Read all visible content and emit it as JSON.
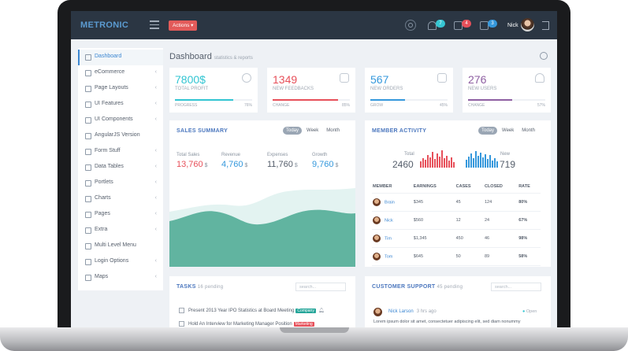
{
  "topbar": {
    "logo": "METRONIC",
    "actions_label": "Actions",
    "notif_count": "7",
    "inbox_count": "4",
    "calendar_count": "3",
    "user_name": "Nick"
  },
  "sidebar": {
    "items": [
      {
        "label": "Dashboard"
      },
      {
        "label": "eCommerce"
      },
      {
        "label": "Page Layouts"
      },
      {
        "label": "UI Features"
      },
      {
        "label": "UI Components"
      },
      {
        "label": "AngularJS Version"
      },
      {
        "label": "Form Stuff"
      },
      {
        "label": "Data Tables"
      },
      {
        "label": "Portlets"
      },
      {
        "label": "Charts"
      },
      {
        "label": "Pages"
      },
      {
        "label": "Extra"
      },
      {
        "label": "Multi Level Menu"
      },
      {
        "label": "Login Options"
      },
      {
        "label": "Maps"
      }
    ]
  },
  "page": {
    "title": "Dashboard",
    "subtitle": "statistics & reports"
  },
  "stats": [
    {
      "value": "7800$",
      "label": "TOTAL PROFIT",
      "progress_label": "PROGRESS",
      "percent": "76%",
      "fill": 0.76,
      "color": "#32c5d2"
    },
    {
      "value": "1349",
      "label": "NEW FEEDBACKS",
      "progress_label": "CHANGE",
      "percent": "85%",
      "fill": 0.85,
      "color": "#e7505a"
    },
    {
      "value": "567",
      "label": "NEW ORDERS",
      "progress_label": "GROW",
      "percent": "45%",
      "fill": 0.45,
      "color": "#3598dc"
    },
    {
      "value": "276",
      "label": "NEW USERS",
      "progress_label": "CHANGE",
      "percent": "57%",
      "fill": 0.57,
      "color": "#8e5fa2"
    }
  ],
  "sales": {
    "title": "SALES SUMMARY",
    "tabs": [
      "Today",
      "Week",
      "Month"
    ],
    "cols": [
      {
        "k": "Total Sales",
        "v": "13,760",
        "u": "$",
        "color": "#e7505a"
      },
      {
        "k": "Revenue",
        "v": "4,760",
        "u": "$",
        "color": "#3598dc"
      },
      {
        "k": "Expenses",
        "v": "11,760",
        "u": "$",
        "color": "#555e6b"
      },
      {
        "k": "Growth",
        "v": "9,760",
        "u": "$",
        "color": "#3598dc"
      }
    ]
  },
  "member": {
    "title": "MEMBER ACTIVITY",
    "tabs": [
      "Today",
      "Week",
      "Month"
    ],
    "total_label": "Total",
    "total_value": "2460",
    "new_label": "New",
    "new_value": "719",
    "headers": [
      "MEMBER",
      "EARNINGS",
      "CASES",
      "CLOSED",
      "RATE"
    ],
    "rows": [
      {
        "name": "Brain",
        "earnings": "$345",
        "cases": "45",
        "closed": "124",
        "rate": "80%"
      },
      {
        "name": "Nick",
        "earnings": "$560",
        "cases": "12",
        "closed": "24",
        "rate": "67%"
      },
      {
        "name": "Tim",
        "earnings": "$1,345",
        "cases": "450",
        "closed": "46",
        "rate": "98%"
      },
      {
        "name": "Tom",
        "earnings": "$645",
        "cases": "50",
        "closed": "89",
        "rate": "58%"
      }
    ]
  },
  "tasks": {
    "title": "TASKS",
    "pending": "16 pending",
    "search_placeholder": "search...",
    "items": [
      {
        "text": "Present 2013 Year IPO Statistics at Board Meeting",
        "tag": "Company",
        "tag_color": "#26a69a"
      },
      {
        "text": "Hold An Interview for Marketing Manager Position",
        "tag": "Marketing",
        "tag_color": "#e7505a"
      }
    ]
  },
  "support": {
    "title": "CUSTOMER SUPPORT",
    "pending": "45 pending",
    "search_placeholder": "search...",
    "author": "Nick Larson",
    "time": "3 hrs ago",
    "status": "Open",
    "message": "Lorem ipsum dolor sit amet, consectetuer adipiscing elit, sed diam nonummy"
  }
}
